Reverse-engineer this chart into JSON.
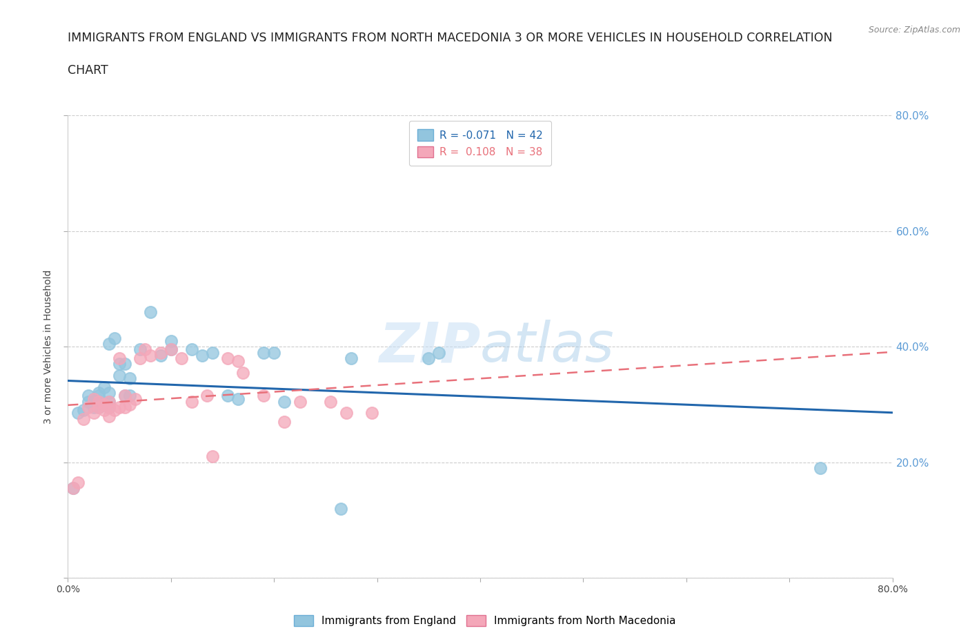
{
  "title_line1": "IMMIGRANTS FROM ENGLAND VS IMMIGRANTS FROM NORTH MACEDONIA 3 OR MORE VEHICLES IN HOUSEHOLD CORRELATION",
  "title_line2": "CHART",
  "source_text": "Source: ZipAtlas.com",
  "ylabel": "3 or more Vehicles in Household",
  "xlim": [
    0.0,
    0.8
  ],
  "ylim": [
    0.0,
    0.8
  ],
  "yticks": [
    0.0,
    0.2,
    0.4,
    0.6,
    0.8
  ],
  "right_yticklabels": [
    "",
    "20.0%",
    "40.0%",
    "60.0%",
    "80.0%"
  ],
  "xtick_positions": [
    0.0,
    0.1,
    0.2,
    0.3,
    0.4,
    0.5,
    0.6,
    0.7,
    0.8
  ],
  "england_color": "#92c5de",
  "england_edge_color": "#6baed6",
  "macedonia_color": "#f4a7b9",
  "macedonia_edge_color": "#e07090",
  "england_line_color": "#2166ac",
  "macedonia_line_color": "#e8707a",
  "england_label": "Immigrants from England",
  "macedonia_label": "Immigrants from North Macedonia",
  "england_R": -0.071,
  "england_N": 42,
  "macedonia_R": 0.108,
  "macedonia_N": 38,
  "watermark": "ZIPatlas",
  "england_x": [
    0.005,
    0.01,
    0.015,
    0.02,
    0.02,
    0.025,
    0.025,
    0.03,
    0.03,
    0.03,
    0.03,
    0.035,
    0.035,
    0.04,
    0.04,
    0.04,
    0.04,
    0.045,
    0.05,
    0.05,
    0.055,
    0.055,
    0.06,
    0.06,
    0.07,
    0.08,
    0.09,
    0.1,
    0.1,
    0.12,
    0.13,
    0.14,
    0.155,
    0.165,
    0.19,
    0.2,
    0.21,
    0.265,
    0.275,
    0.35,
    0.36,
    0.73
  ],
  "england_y": [
    0.155,
    0.285,
    0.29,
    0.305,
    0.315,
    0.295,
    0.31,
    0.295,
    0.305,
    0.315,
    0.32,
    0.3,
    0.33,
    0.295,
    0.305,
    0.32,
    0.405,
    0.415,
    0.35,
    0.37,
    0.315,
    0.37,
    0.315,
    0.345,
    0.395,
    0.46,
    0.385,
    0.395,
    0.41,
    0.395,
    0.385,
    0.39,
    0.315,
    0.31,
    0.39,
    0.39,
    0.305,
    0.12,
    0.38,
    0.38,
    0.39,
    0.19
  ],
  "macedonia_x": [
    0.005,
    0.01,
    0.015,
    0.02,
    0.025,
    0.025,
    0.03,
    0.03,
    0.035,
    0.035,
    0.04,
    0.04,
    0.04,
    0.045,
    0.05,
    0.05,
    0.055,
    0.055,
    0.06,
    0.065,
    0.07,
    0.075,
    0.08,
    0.09,
    0.1,
    0.11,
    0.12,
    0.135,
    0.14,
    0.155,
    0.165,
    0.17,
    0.19,
    0.21,
    0.225,
    0.255,
    0.27,
    0.295
  ],
  "macedonia_y": [
    0.155,
    0.165,
    0.275,
    0.295,
    0.285,
    0.31,
    0.295,
    0.305,
    0.29,
    0.3,
    0.28,
    0.295,
    0.305,
    0.29,
    0.295,
    0.38,
    0.295,
    0.315,
    0.3,
    0.31,
    0.38,
    0.395,
    0.385,
    0.39,
    0.395,
    0.38,
    0.305,
    0.315,
    0.21,
    0.38,
    0.375,
    0.355,
    0.315,
    0.27,
    0.305,
    0.305,
    0.285,
    0.285
  ],
  "grid_color": "#cccccc",
  "bg_color": "#ffffff",
  "title_fontsize": 12.5,
  "label_fontsize": 10,
  "tick_fontsize": 10,
  "legend_fontsize": 11
}
